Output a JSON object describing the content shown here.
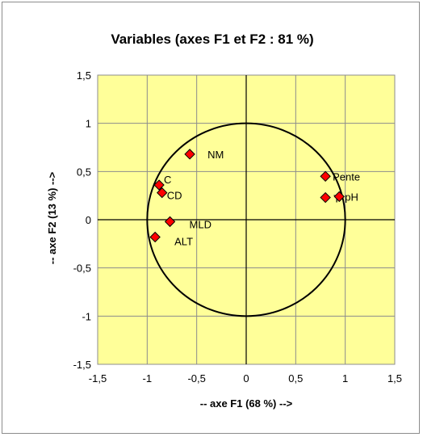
{
  "chart_data": {
    "type": "scatter",
    "title": "Variables (axes F1 et F2 : 81 %)",
    "xlabel": "-- axe F1 (68 %) -->",
    "ylabel": "-- axe F2 (13 %) -->",
    "xlim": [
      -1.5,
      1.5
    ],
    "ylim": [
      -1.5,
      1.5
    ],
    "xticks": [
      -1.5,
      -1,
      -0.5,
      0,
      0.5,
      1,
      1.5
    ],
    "yticks": [
      -1.5,
      -1,
      -0.5,
      0,
      0.5,
      1,
      1.5
    ],
    "xtick_labels": [
      "-1,5",
      "-1",
      "-0,5",
      "0",
      "0,5",
      "1",
      "1,5"
    ],
    "ytick_labels": [
      "-1,5",
      "-1",
      "-0,5",
      "0",
      "0,5",
      "1",
      "1,5"
    ],
    "grid": true,
    "unit_circle": true,
    "plot_background": "#ffff99",
    "marker_color": "#ff0000",
    "marker_shape": "diamond",
    "points": [
      {
        "label": "NM",
        "x": -0.57,
        "y": 0.68
      },
      {
        "label": "C",
        "x": -0.88,
        "y": 0.36
      },
      {
        "label": "CD",
        "x": -0.85,
        "y": 0.28
      },
      {
        "label": "MLD",
        "x": -0.77,
        "y": -0.02
      },
      {
        "label": "ALT",
        "x": -0.92,
        "y": -0.18
      },
      {
        "label": "Pente",
        "x": 0.8,
        "y": 0.45
      },
      {
        "label": "T°",
        "x": 0.8,
        "y": 0.23
      },
      {
        "label": "pH",
        "x": 0.94,
        "y": 0.24
      }
    ]
  }
}
